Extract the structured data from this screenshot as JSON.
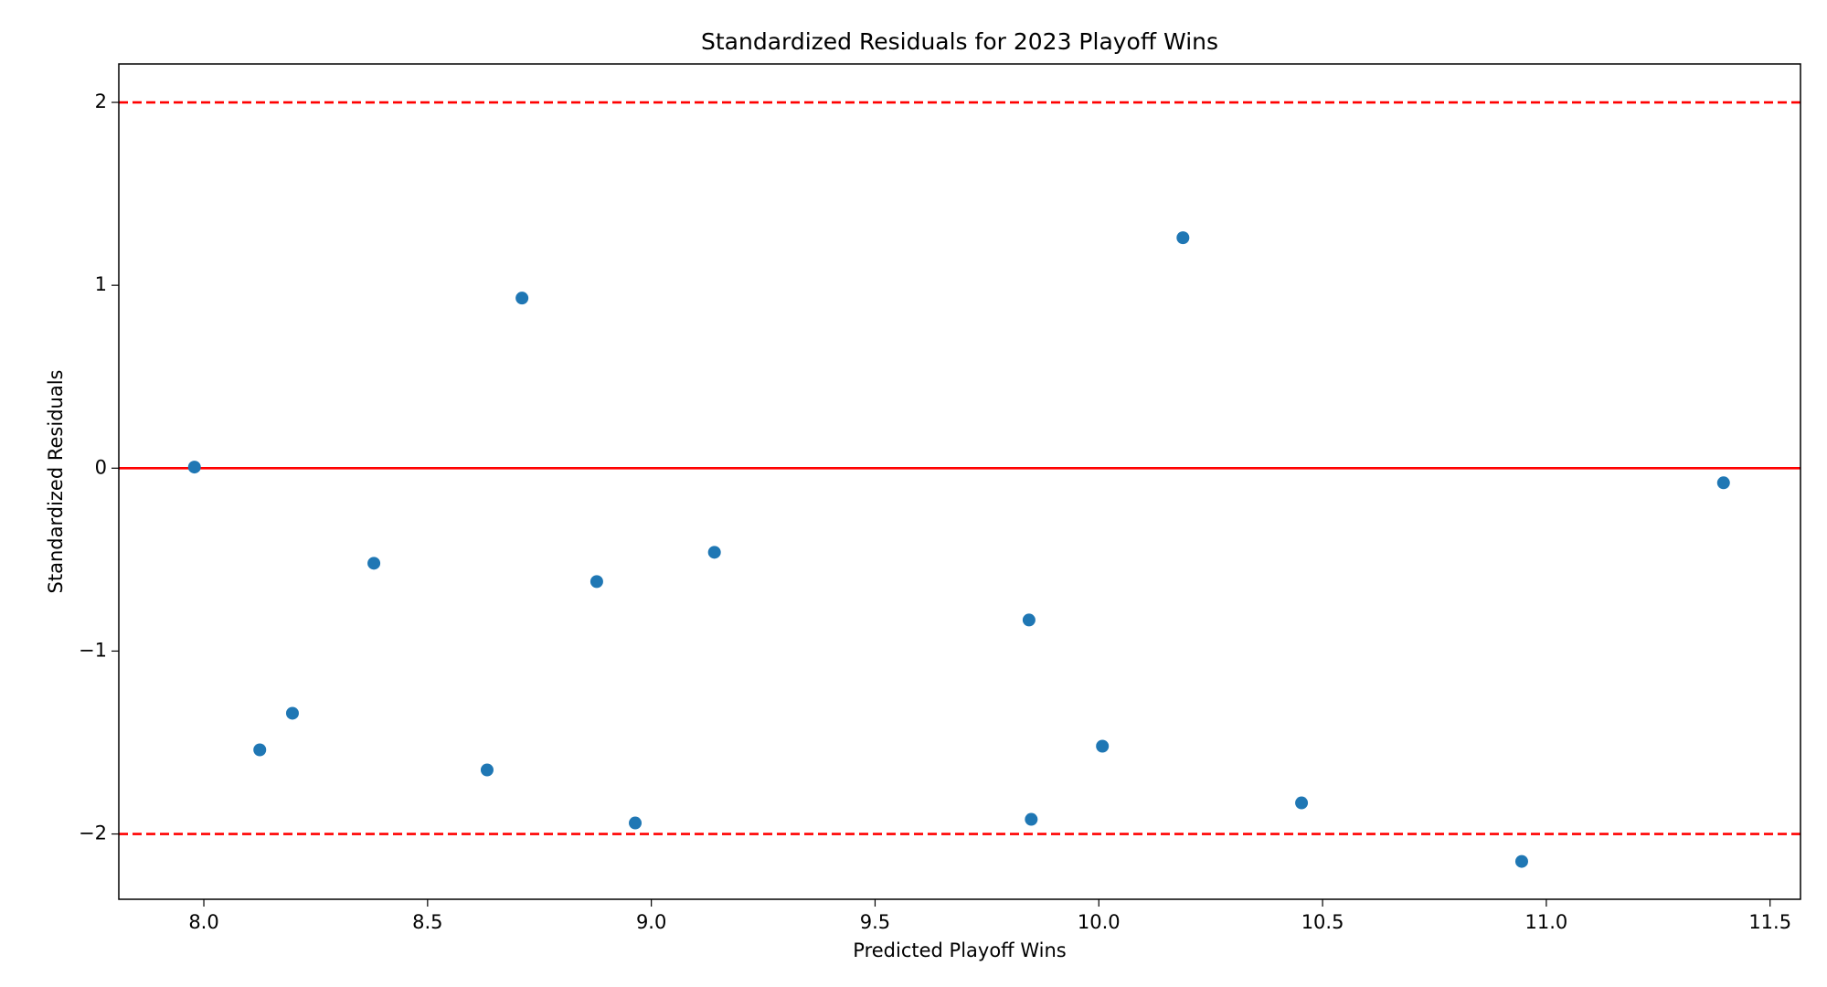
{
  "chart_data": {
    "type": "scatter",
    "title": "Standardized Residuals for 2023 Playoff Wins",
    "x_label": "Predicted Playoff Wins",
    "y_label": "Standardized Residuals",
    "series": [
      {
        "color": "#1f77b4",
        "x": [
          7.979,
          8.125,
          8.198,
          8.38,
          8.633,
          8.711,
          8.878,
          8.964,
          9.141,
          9.844,
          9.849,
          10.008,
          10.188,
          10.453,
          10.945,
          11.396
        ],
        "values": [
          0.006,
          -1.54,
          -1.34,
          -0.52,
          -1.65,
          0.93,
          -0.62,
          -1.94,
          -0.46,
          -0.83,
          -1.92,
          -1.52,
          1.26,
          -1.83,
          -2.15,
          -0.08
        ]
      }
    ],
    "xlim": [
      7.81,
      11.568
    ],
    "ylim": [
      -2.357,
      2.21
    ],
    "xticks": [
      {
        "value": 8,
        "label": "8.0"
      },
      8.5,
      {
        "value": 9,
        "label": "9.0"
      },
      9.5,
      {
        "value": 10,
        "label": "10.0"
      },
      10.5,
      {
        "value": 11,
        "label": "11.0"
      },
      11.5
    ],
    "yticks": [
      {
        "value": -2,
        "label": "−2"
      },
      {
        "value": -1,
        "label": "−1"
      },
      0,
      1,
      2
    ],
    "reference_lines": [
      {
        "value": 2,
        "style": "dashed",
        "color": "#ff0000"
      },
      {
        "value": 0,
        "style": "solid",
        "color": "#ff0000"
      },
      {
        "value": -2,
        "style": "dashed",
        "color": "#ff0000"
      }
    ],
    "grid": false
  }
}
